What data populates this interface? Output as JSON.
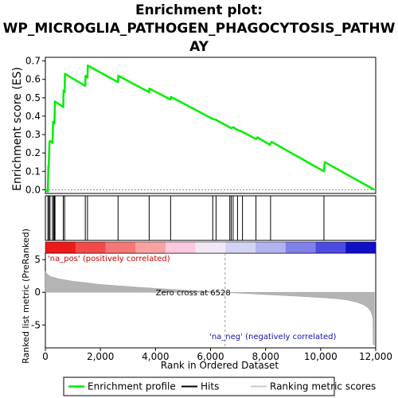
{
  "chart_data": {
    "type": "line",
    "title_lines": [
      "Enrichment plot:",
      "WP_MICROGLIA_PATHOGEN_PHAGOCYTOSIS_PATHW",
      "AY"
    ],
    "es_panel": {
      "ylabel": "Enrichment score (ES)",
      "ylim": [
        -0.02,
        0.72
      ],
      "yticks": [
        "0.0",
        "0.1",
        "0.2",
        "0.3",
        "0.4",
        "0.5",
        "0.6",
        "0.7"
      ],
      "series": [
        {
          "name": "Enrichment profile",
          "color": "#00ee00",
          "x": [
            0,
            90,
            110,
            120,
            150,
            170,
            260,
            280,
            330,
            350,
            650,
            660,
            700,
            710,
            1450,
            1460,
            1530,
            1540,
            2640,
            2650,
            3770,
            3780,
            4550,
            4560,
            6080,
            6200,
            6750,
            6820,
            6980,
            7160,
            7650,
            7700,
            8150,
            8220,
            10120,
            10150,
            11950
          ],
          "y": [
            0.0,
            -0.01,
            0.13,
            0.12,
            0.26,
            0.265,
            0.255,
            0.37,
            0.36,
            0.48,
            0.45,
            0.54,
            0.53,
            0.63,
            0.565,
            0.62,
            0.61,
            0.675,
            0.585,
            0.62,
            0.53,
            0.55,
            0.49,
            0.505,
            0.385,
            0.38,
            0.335,
            0.34,
            0.325,
            0.315,
            0.275,
            0.285,
            0.245,
            0.26,
            0.1,
            0.15,
            0.0
          ]
        }
      ]
    },
    "hits": [
      90,
      130,
      170,
      260,
      300,
      330,
      350,
      650,
      700,
      1450,
      1530,
      2640,
      3770,
      4550,
      6080,
      6200,
      6700,
      6750,
      6820,
      6980,
      7160,
      7650,
      8180,
      10120
    ],
    "heat_colors": [
      "#ee1a1a",
      "#f24a4a",
      "#f57777",
      "#f8a3a3",
      "#fbc8e0",
      "#f2e8f5",
      "#d3d3f5",
      "#b2b2f0",
      "#8080e8",
      "#4b4be2",
      "#0f0fc8"
    ],
    "metric_panel": {
      "ylabel": "Ranked list metric (PreRanked)",
      "ylim": [
        -8.5,
        6.0
      ],
      "yticks": [
        "-5",
        "0",
        "5"
      ],
      "profile_x": [
        0,
        60,
        200,
        500,
        1000,
        2000,
        3000,
        4000,
        5000,
        6000,
        6528,
        7000,
        8000,
        9000,
        10000,
        10500,
        11000,
        11300,
        11550,
        11700,
        11800,
        11850,
        11900,
        11910,
        11950
      ],
      "profile_y": [
        3.2,
        2.8,
        2.4,
        2.05,
        1.7,
        1.2,
        0.9,
        0.6,
        0.35,
        0.12,
        0.0,
        -0.12,
        -0.35,
        -0.55,
        -0.8,
        -0.95,
        -1.2,
        -1.5,
        -1.9,
        -2.3,
        -2.8,
        -3.2,
        -4.0,
        -8.0,
        -8.1
      ],
      "pos_label": "'na_pos' (positively correlated)",
      "neg_label": "'na_neg' (negatively correlated)",
      "zero_cross_label": "Zero cross at 6528",
      "zero_cross_x": 6528
    },
    "xlabel": "Rank in Ordered Dataset",
    "xlim": [
      0,
      12000
    ],
    "xticks": [
      "0",
      "2,000",
      "4,000",
      "6,000",
      "8,000",
      "10,000",
      "12,000"
    ],
    "legend": {
      "placement": "bottom",
      "items": [
        {
          "label": "Enrichment profile",
          "color": "#00ee00"
        },
        {
          "label": "Hits",
          "color": "#000000"
        },
        {
          "label": "Ranking metric scores",
          "color": "#c8c8c8"
        }
      ]
    }
  }
}
